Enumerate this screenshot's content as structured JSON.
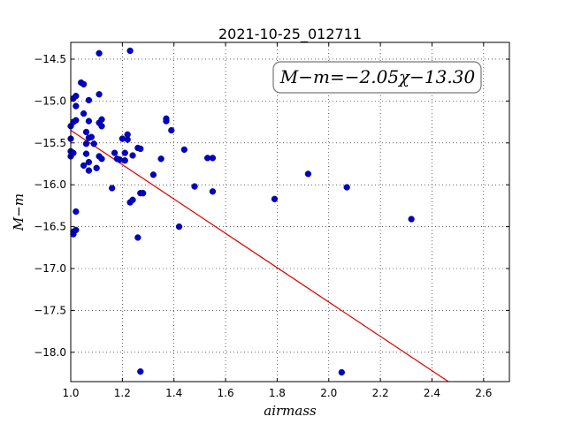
{
  "chart_data": {
    "type": "scatter",
    "title": "2021-10-25_012711",
    "xlabel": "airmass",
    "ylabel": "M−m",
    "xlim": [
      1.0,
      2.7
    ],
    "ylim": [
      -18.35,
      -14.3
    ],
    "y_inverted": true,
    "grid": true,
    "x_ticks": [
      "1.0",
      "1.2",
      "1.4",
      "1.6",
      "1.8",
      "2.0",
      "2.2",
      "2.4",
      "2.6"
    ],
    "y_ticks": [
      "−14.5",
      "−15.0",
      "−15.5",
      "−16.0",
      "−16.5",
      "−17.0",
      "−17.5",
      "−18.0"
    ],
    "annotation": "M−m=−2.05χ−13.30",
    "annotation_position": "top-right",
    "point_color": "#0000cc",
    "line_color": "#dd0000",
    "fit": {
      "slope": -2.05,
      "intercept": -13.3
    },
    "points": [
      [
        1.0,
        -15.3
      ],
      [
        1.0,
        -15.45
      ],
      [
        1.0,
        -15.6
      ],
      [
        1.0,
        -15.66
      ],
      [
        1.01,
        -14.97
      ],
      [
        1.01,
        -15.25
      ],
      [
        1.01,
        -15.62
      ],
      [
        1.01,
        -16.56
      ],
      [
        1.01,
        -16.59
      ],
      [
        1.02,
        -14.94
      ],
      [
        1.02,
        -15.06
      ],
      [
        1.02,
        -15.23
      ],
      [
        1.02,
        -16.32
      ],
      [
        1.02,
        -16.54
      ],
      [
        1.04,
        -14.78
      ],
      [
        1.05,
        -15.77
      ],
      [
        1.05,
        -14.8
      ],
      [
        1.05,
        -15.15
      ],
      [
        1.06,
        -15.37
      ],
      [
        1.06,
        -15.51
      ],
      [
        1.06,
        -15.63
      ],
      [
        1.07,
        -14.99
      ],
      [
        1.07,
        -15.24
      ],
      [
        1.07,
        -15.44
      ],
      [
        1.07,
        -15.73
      ],
      [
        1.07,
        -15.83
      ],
      [
        1.08,
        -15.43
      ],
      [
        1.09,
        -15.51
      ],
      [
        1.1,
        -15.8
      ],
      [
        1.11,
        -14.92
      ],
      [
        1.11,
        -15.26
      ],
      [
        1.11,
        -15.66
      ],
      [
        1.12,
        -15.22
      ],
      [
        1.12,
        -15.3
      ],
      [
        1.12,
        -15.69
      ],
      [
        1.11,
        -14.43
      ],
      [
        1.16,
        -16.04
      ],
      [
        1.17,
        -15.62
      ],
      [
        1.18,
        -15.69
      ],
      [
        1.19,
        -15.7
      ],
      [
        1.2,
        -15.45
      ],
      [
        1.21,
        -15.71
      ],
      [
        1.21,
        -15.62
      ],
      [
        1.22,
        -15.4
      ],
      [
        1.22,
        -15.46
      ],
      [
        1.23,
        -16.21
      ],
      [
        1.24,
        -16.18
      ],
      [
        1.24,
        -15.65
      ],
      [
        1.23,
        -14.4
      ],
      [
        1.26,
        -15.56
      ],
      [
        1.27,
        -15.57
      ],
      [
        1.26,
        -16.63
      ],
      [
        1.27,
        -16.1
      ],
      [
        1.28,
        -16.1
      ],
      [
        1.27,
        -18.23
      ],
      [
        1.32,
        -15.88
      ],
      [
        1.35,
        -15.69
      ],
      [
        1.37,
        -15.21
      ],
      [
        1.37,
        -15.24
      ],
      [
        1.39,
        -15.35
      ],
      [
        1.42,
        -16.5
      ],
      [
        1.44,
        -15.58
      ],
      [
        1.48,
        -16.02
      ],
      [
        1.53,
        -15.68
      ],
      [
        1.55,
        -15.68
      ],
      [
        1.55,
        -16.08
      ],
      [
        1.79,
        -16.17
      ],
      [
        1.92,
        -15.87
      ],
      [
        2.05,
        -18.24
      ],
      [
        2.07,
        -16.03
      ],
      [
        2.32,
        -16.41
      ]
    ]
  }
}
